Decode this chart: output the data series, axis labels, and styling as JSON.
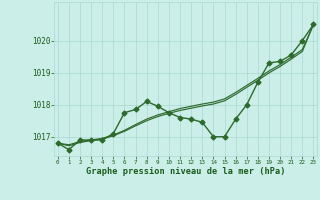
{
  "xlabel": "Graphe pression niveau de la mer (hPa)",
  "x": [
    0,
    1,
    2,
    3,
    4,
    5,
    6,
    7,
    8,
    9,
    10,
    11,
    12,
    13,
    14,
    15,
    16,
    17,
    18,
    19,
    20,
    21,
    22,
    23
  ],
  "y_main": [
    1016.8,
    1016.6,
    1016.9,
    1016.9,
    1016.9,
    1017.1,
    1017.75,
    1017.85,
    1018.1,
    1017.95,
    1017.75,
    1017.6,
    1017.55,
    1017.45,
    1017.0,
    1017.0,
    1017.55,
    1018.0,
    1018.7,
    1019.3,
    1019.35,
    1019.55,
    1020.0,
    1020.5
  ],
  "y_smooth1": [
    1016.8,
    1016.75,
    1016.85,
    1016.9,
    1016.95,
    1017.05,
    1017.2,
    1017.38,
    1017.55,
    1017.68,
    1017.78,
    1017.88,
    1017.95,
    1018.02,
    1018.08,
    1018.18,
    1018.38,
    1018.6,
    1018.82,
    1019.05,
    1019.25,
    1019.48,
    1019.72,
    1020.5
  ],
  "y_smooth2": [
    1016.8,
    1016.72,
    1016.82,
    1016.88,
    1016.93,
    1017.03,
    1017.17,
    1017.34,
    1017.5,
    1017.63,
    1017.73,
    1017.82,
    1017.89,
    1017.96,
    1018.02,
    1018.12,
    1018.32,
    1018.54,
    1018.76,
    1018.99,
    1019.19,
    1019.42,
    1019.66,
    1020.5
  ],
  "line_color": "#2d6a2d",
  "bg_color": "#cceee8",
  "grid_color": "#aad8d2",
  "text_color": "#1a5c1a",
  "ylim": [
    1016.4,
    1021.2
  ],
  "yticks": [
    1017,
    1018,
    1019,
    1020
  ],
  "marker": "D",
  "markersize": 2.5,
  "linewidth": 1.0,
  "tick_fontsize": 5.5,
  "xlabel_fontsize": 6.2
}
